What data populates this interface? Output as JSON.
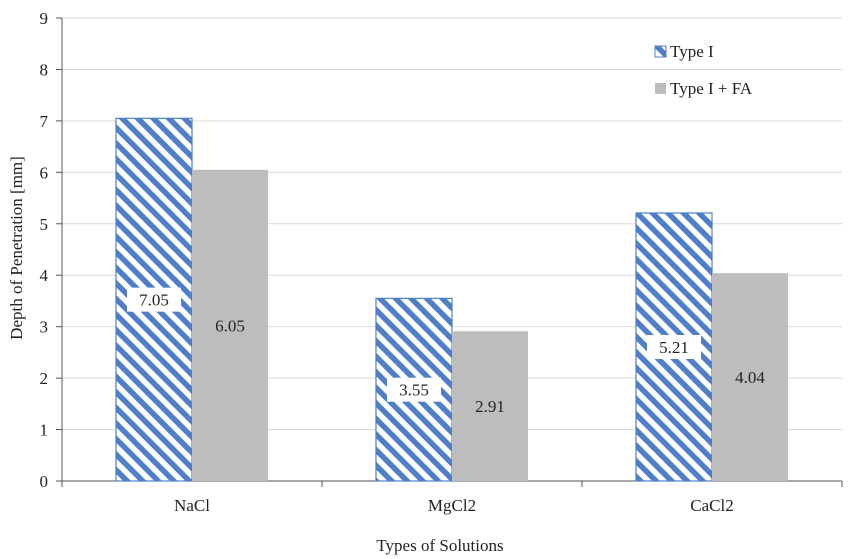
{
  "chart_data": {
    "type": "bar",
    "categories": [
      "NaCl",
      "MgCl2",
      "CaCl2"
    ],
    "series": [
      {
        "name": "Type I",
        "values": [
          7.05,
          3.55,
          5.21
        ],
        "pattern": "diagonal-hatch",
        "color": "#4f7fc8"
      },
      {
        "name": "Type I + FA",
        "values": [
          6.05,
          2.91,
          4.04
        ],
        "pattern": "solid",
        "color": "#bdbdbd"
      }
    ],
    "data_labels": [
      [
        "7.05",
        "3.55",
        "5.21"
      ],
      [
        "6.05",
        "2.91",
        "4.04"
      ]
    ],
    "xlabel": "Types of Solutions",
    "ylabel": "Depth of Penetration [mm]",
    "ylim": [
      0,
      9
    ],
    "yticks": [
      "0",
      "1",
      "2",
      "3",
      "4",
      "5",
      "6",
      "7",
      "8",
      "9"
    ],
    "grid": true,
    "legend_position": "top-right"
  }
}
